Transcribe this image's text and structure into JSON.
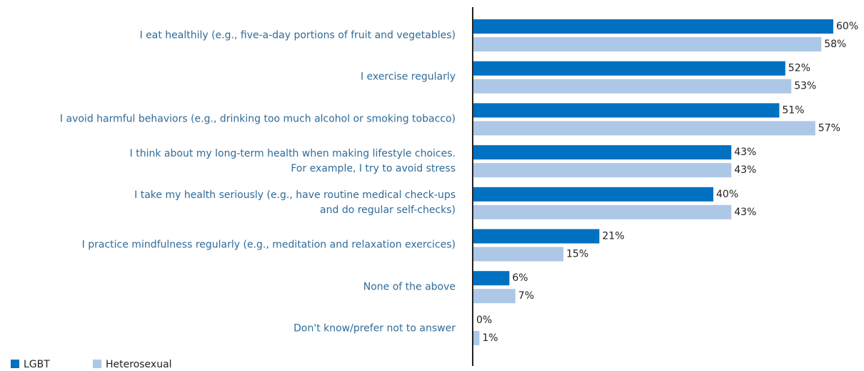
{
  "chart_data": {
    "type": "bar",
    "orientation": "horizontal",
    "categories": [
      "I eat healthily (e.g., five-a-day portions of fruit and vegetables)",
      "I exercise regularly",
      "I avoid harmful behaviors (e.g., drinking too much alcohol or smoking tobacco)",
      "I think about my long-term health when making lifestyle choices.\nFor example, I try to avoid stress",
      "I take my health seriously (e.g., have routine medical check-ups\nand do regular self-checks)",
      "I practice mindfulness regularly (e.g., meditation and relaxation exercices)",
      "None of the above",
      "Don't know/prefer not to answer"
    ],
    "series": [
      {
        "name": "LGBT",
        "color": "#0070c0",
        "values": [
          60,
          52,
          51,
          43,
          40,
          21,
          6,
          0
        ],
        "value_labels": [
          "60%",
          "52%",
          "51%",
          "43%",
          "40%",
          "21%",
          "6%",
          "0%"
        ]
      },
      {
        "name": "Heterosexual",
        "color": "#adc8e6",
        "values": [
          58,
          53,
          57,
          43,
          43,
          15,
          7,
          1
        ],
        "value_labels": [
          "58%",
          "53%",
          "57%",
          "43%",
          "43%",
          "15%",
          "7%",
          "1%"
        ]
      }
    ],
    "legend": "bottom-left"
  }
}
